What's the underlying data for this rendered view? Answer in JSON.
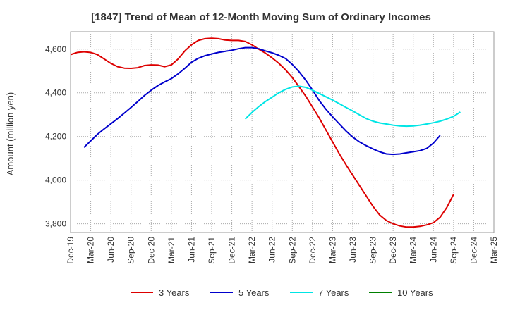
{
  "chart_data": {
    "type": "line",
    "title": "[1847]  Trend of Mean of 12-Month Moving Sum of Ordinary Incomes",
    "xlabel": "",
    "ylabel": "Amount (million yen)",
    "x_tick_labels": [
      "Dec-19",
      "Mar-20",
      "Jun-20",
      "Sep-20",
      "Dec-20",
      "Mar-21",
      "Jun-21",
      "Sep-21",
      "Dec-21",
      "Mar-22",
      "Jun-22",
      "Sep-22",
      "Dec-22",
      "Mar-23",
      "Jun-23",
      "Sep-23",
      "Dec-23",
      "Mar-24",
      "Jun-24",
      "Sep-24",
      "Dec-24",
      "Mar-25"
    ],
    "x_range_months": [
      0,
      63
    ],
    "ylim": [
      3760,
      4680
    ],
    "y_ticks": [
      3800,
      4000,
      4200,
      4400,
      4600
    ],
    "y_tick_labels": [
      "3,800",
      "4,000",
      "4,200",
      "4,400",
      "4,600"
    ],
    "grid": true,
    "legend_position": "bottom",
    "series": [
      {
        "name": "3 Years",
        "color": "#dd0000",
        "x_start": 0,
        "values": [
          4575,
          4585,
          4588,
          4585,
          4575,
          4555,
          4535,
          4520,
          4513,
          4512,
          4515,
          4525,
          4528,
          4527,
          4520,
          4528,
          4555,
          4592,
          4620,
          4640,
          4648,
          4650,
          4648,
          4642,
          4640,
          4640,
          4635,
          4620,
          4600,
          4582,
          4560,
          4535,
          4505,
          4470,
          4428,
          4385,
          4335,
          4285,
          4230,
          4175,
          4120,
          4070,
          4022,
          3975,
          3928,
          3880,
          3840,
          3815,
          3800,
          3790,
          3785,
          3785,
          3788,
          3795,
          3805,
          3830,
          3875,
          3935
        ]
      },
      {
        "name": "5 Years",
        "color": "#0000cc",
        "x_start": 2,
        "values": [
          4150,
          4180,
          4210,
          4235,
          4258,
          4282,
          4307,
          4333,
          4360,
          4388,
          4412,
          4433,
          4450,
          4465,
          4487,
          4512,
          4540,
          4558,
          4570,
          4578,
          4585,
          4590,
          4595,
          4602,
          4607,
          4607,
          4602,
          4592,
          4583,
          4572,
          4557,
          4530,
          4497,
          4458,
          4413,
          4365,
          4325,
          4290,
          4257,
          4225,
          4197,
          4175,
          4158,
          4143,
          4130,
          4120,
          4118,
          4120,
          4125,
          4130,
          4135,
          4145,
          4170,
          4205
        ]
      },
      {
        "name": "7 Years",
        "color": "#00e5e5",
        "x_start": 26,
        "values": [
          4280,
          4310,
          4337,
          4360,
          4380,
          4400,
          4416,
          4427,
          4430,
          4425,
          4412,
          4397,
          4382,
          4367,
          4350,
          4333,
          4317,
          4299,
          4282,
          4270,
          4262,
          4257,
          4252,
          4248,
          4247,
          4248,
          4252,
          4257,
          4263,
          4270,
          4280,
          4292,
          4312
        ]
      },
      {
        "name": "10 Years",
        "color": "#008000",
        "x_start": 0,
        "values": []
      }
    ]
  }
}
